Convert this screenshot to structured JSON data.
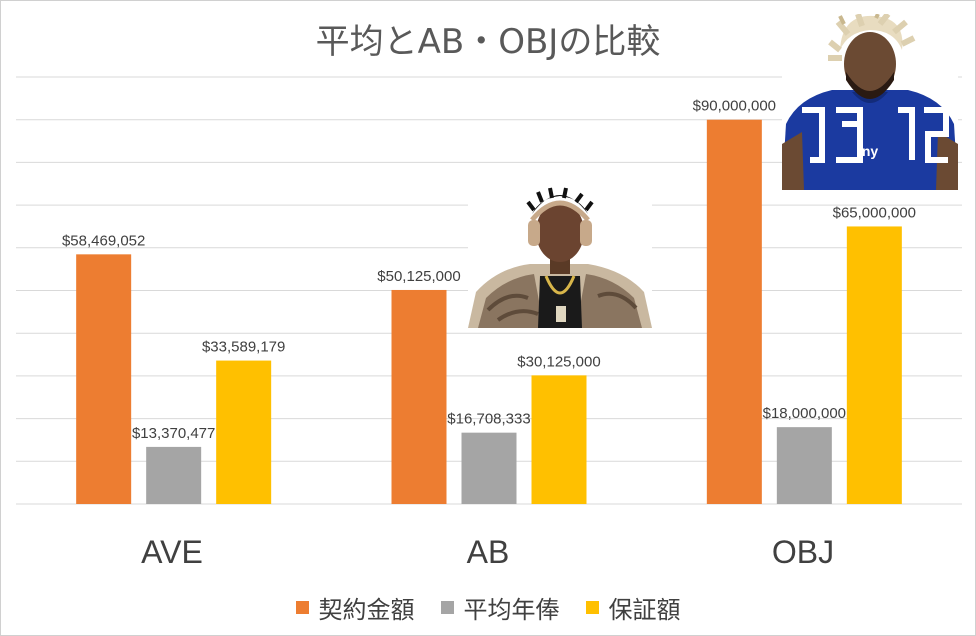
{
  "chart_data": {
    "type": "bar",
    "title": "平均とAB・OBJの比較",
    "categories": [
      "AVE",
      "AB",
      "OBJ"
    ],
    "series": [
      {
        "name": "契約金額",
        "color": "#ED7D31",
        "values": [
          58469052,
          50125000,
          90000000
        ],
        "labels": [
          "$58,469,052",
          "$50,125,000",
          "$90,000,000"
        ]
      },
      {
        "name": "平均年俸",
        "color": "#A5A5A5",
        "values": [
          13370477,
          16708333,
          18000000
        ],
        "labels": [
          "$13,370,477",
          "$16,708,333",
          "$18,000,000"
        ]
      },
      {
        "name": "保証額",
        "color": "#FFC000",
        "values": [
          33589179,
          30125000,
          65000000
        ],
        "labels": [
          "$33,589,179",
          "$30,125,000",
          "$65,000,000"
        ]
      }
    ],
    "ylim": [
      0,
      100000000
    ],
    "grid": true,
    "legend": "bottom"
  }
}
